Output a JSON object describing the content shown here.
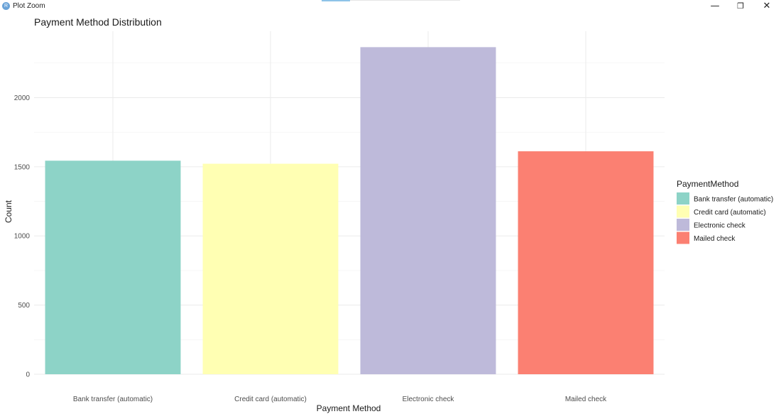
{
  "window": {
    "title": "Plot Zoom",
    "icon_letter": "R",
    "controls": {
      "minimize_icon": "minimize-icon",
      "maximize_icon": "restore-icon",
      "close_icon": "close-icon"
    }
  },
  "chart_data": {
    "type": "bar",
    "title": "Payment Method Distribution",
    "xlabel": "Payment Method",
    "ylabel": "Count",
    "categories": [
      "Bank transfer (automatic)",
      "Credit card (automatic)",
      "Electronic check",
      "Mailed check"
    ],
    "values": [
      1544,
      1522,
      2365,
      1612
    ],
    "colors": [
      "#8DD3C7",
      "#FFFFB3",
      "#BEBADA",
      "#FB8072"
    ],
    "ylim": [
      0,
      2480
    ],
    "yticks": [
      0,
      500,
      1000,
      1500,
      2000
    ],
    "grid": true,
    "legend": {
      "title": "PaymentMethod",
      "placement": "right",
      "entries": [
        "Bank transfer (automatic)",
        "Credit card (automatic)",
        "Electronic check",
        "Mailed check"
      ]
    }
  }
}
